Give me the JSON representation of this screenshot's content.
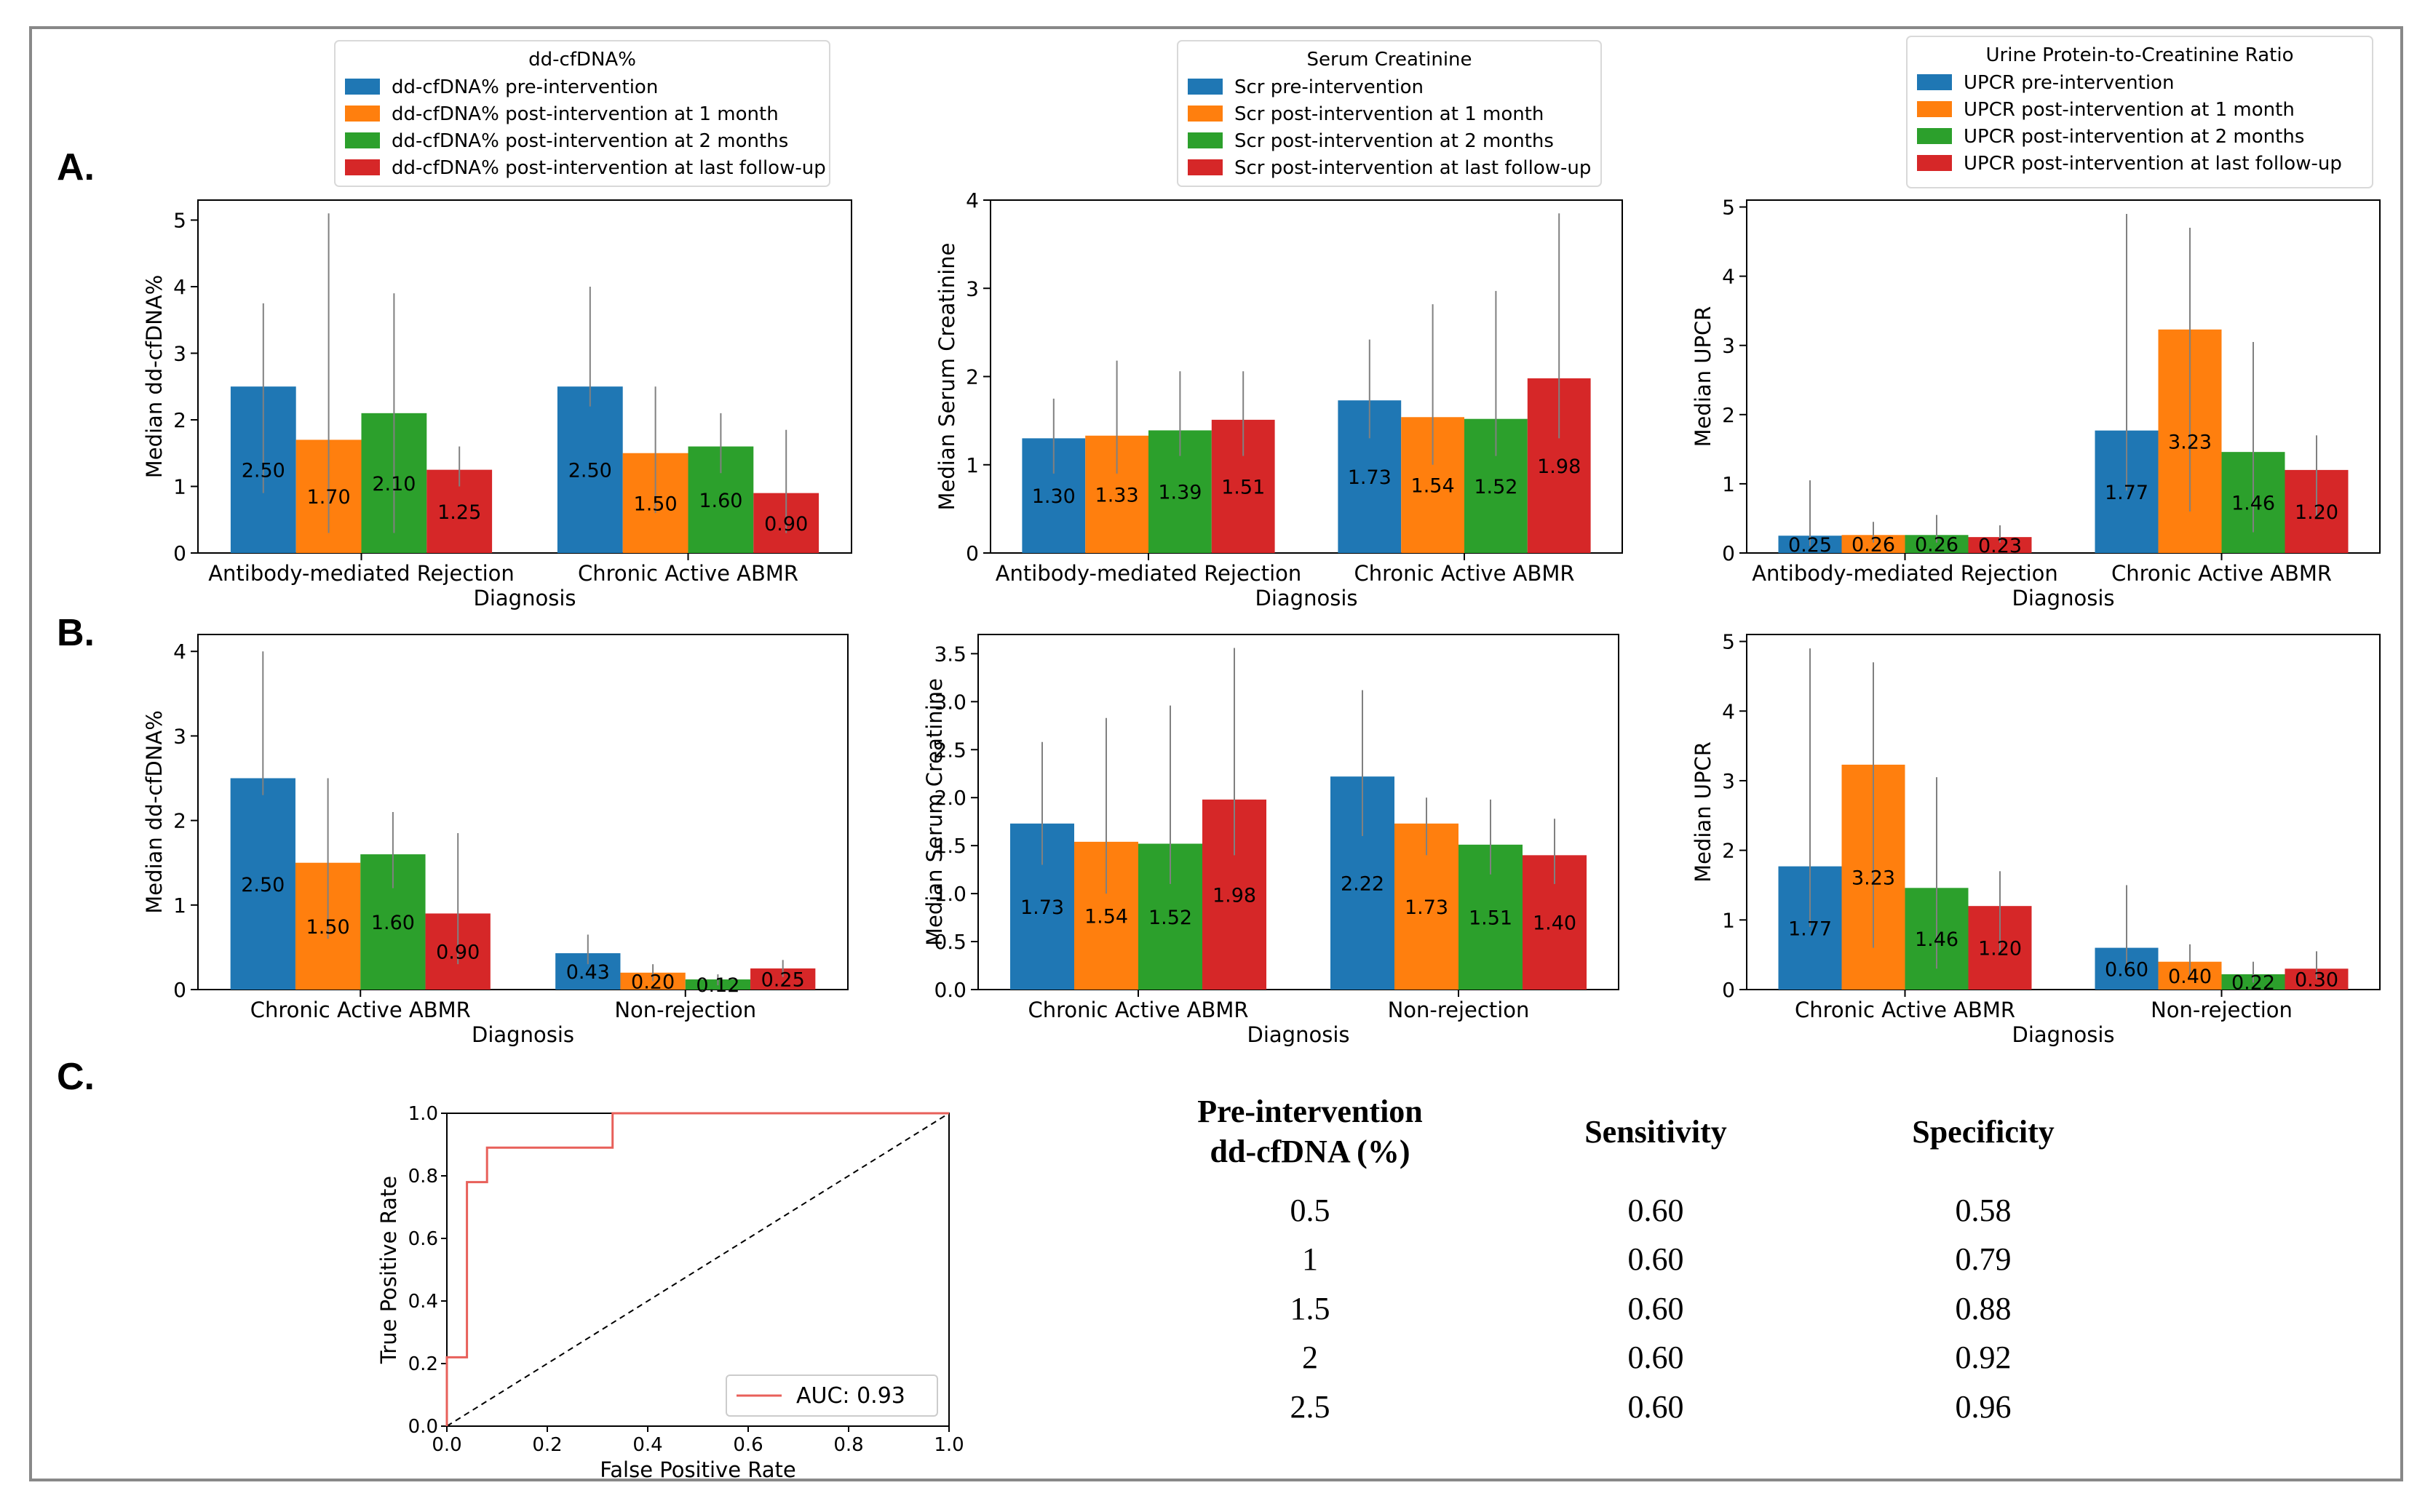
{
  "figure": {
    "panel_labels": [
      "A.",
      "B.",
      "C."
    ]
  },
  "colors": {
    "pre": "#1f77b4",
    "m1": "#ff7f0e",
    "m2": "#2ca02c",
    "last": "#d62728",
    "errorbar": "#808080",
    "roc_line": "#e8605a",
    "chance_line": "#000000"
  },
  "chart_data": [
    {
      "id": "A1",
      "type": "bar",
      "legend_title": "dd-cfDNA%",
      "legend_labels": [
        "dd-cfDNA% pre-intervention",
        "dd-cfDNA% post-intervention at 1 month",
        "dd-cfDNA% post-intervention at 2 months",
        "dd-cfDNA% post-intervention at last follow-up"
      ],
      "xlabel": "Diagnosis",
      "ylabel": "Median dd-cfDNA%",
      "categories": [
        "Antibody-mediated Rejection",
        "Chronic Active ABMR"
      ],
      "ylim": [
        0,
        5.3
      ],
      "yticks": [
        0,
        1,
        2,
        3,
        4,
        5
      ],
      "ytick_labels": [
        "0",
        "1",
        "2",
        "3",
        "4",
        "5"
      ],
      "series": [
        {
          "name": "pre",
          "values": [
            2.5,
            2.5
          ],
          "labels": [
            "2.50",
            "2.50"
          ],
          "err_low": [
            0.9,
            2.2
          ],
          "err_high": [
            3.75,
            4.0
          ]
        },
        {
          "name": "m1",
          "values": [
            1.7,
            1.5
          ],
          "labels": [
            "1.70",
            "1.50"
          ],
          "err_low": [
            0.3,
            0.6
          ],
          "err_high": [
            5.1,
            2.5
          ]
        },
        {
          "name": "m2",
          "values": [
            2.1,
            1.6
          ],
          "labels": [
            "2.10",
            "1.60"
          ],
          "err_low": [
            0.3,
            1.2
          ],
          "err_high": [
            3.9,
            2.1
          ]
        },
        {
          "name": "last",
          "values": [
            1.25,
            0.9
          ],
          "labels": [
            "1.25",
            "0.90"
          ],
          "err_low": [
            1.0,
            0.3
          ],
          "err_high": [
            1.6,
            1.85
          ]
        }
      ]
    },
    {
      "id": "A2",
      "type": "bar",
      "legend_title": "Serum Creatinine",
      "legend_labels": [
        "Scr pre-intervention",
        "Scr post-intervention at 1 month",
        "Scr post-intervention at 2 months",
        "Scr post-intervention at last follow-up"
      ],
      "xlabel": "Diagnosis",
      "ylabel": "Median Serum Creatinine",
      "categories": [
        "Antibody-mediated Rejection",
        "Chronic Active ABMR"
      ],
      "ylim": [
        0,
        4.0
      ],
      "yticks": [
        0,
        1,
        2,
        3,
        4
      ],
      "ytick_labels": [
        "0",
        "1",
        "2",
        "3",
        "4"
      ],
      "series": [
        {
          "name": "pre",
          "values": [
            1.3,
            1.73
          ],
          "labels": [
            "1.30",
            "1.73"
          ],
          "err_low": [
            0.9,
            1.3
          ],
          "err_high": [
            1.75,
            2.42
          ]
        },
        {
          "name": "m1",
          "values": [
            1.33,
            1.54
          ],
          "labels": [
            "1.33",
            "1.54"
          ],
          "err_low": [
            0.9,
            1.0
          ],
          "err_high": [
            2.18,
            2.82
          ]
        },
        {
          "name": "m2",
          "values": [
            1.39,
            1.52
          ],
          "labels": [
            "1.39",
            "1.52"
          ],
          "err_low": [
            1.1,
            1.1
          ],
          "err_high": [
            2.06,
            2.97
          ]
        },
        {
          "name": "last",
          "values": [
            1.51,
            1.98
          ],
          "labels": [
            "1.51",
            "1.98"
          ],
          "err_low": [
            1.1,
            1.3
          ],
          "err_high": [
            2.06,
            3.85
          ]
        }
      ]
    },
    {
      "id": "A3",
      "type": "bar",
      "legend_title": "Urine Protein-to-Creatinine Ratio",
      "legend_labels": [
        "UPCR pre-intervention",
        "UPCR post-intervention at 1 month",
        "UPCR post-intervention at 2 months",
        "UPCR post-intervention at last follow-up"
      ],
      "xlabel": "Diagnosis",
      "ylabel": "Median UPCR",
      "categories": [
        "Antibody-mediated Rejection",
        "Chronic Active ABMR"
      ],
      "ylim": [
        0,
        5.1
      ],
      "yticks": [
        0,
        1,
        2,
        3,
        4,
        5
      ],
      "ytick_labels": [
        "0",
        "1",
        "2",
        "3",
        "4",
        "5"
      ],
      "series": [
        {
          "name": "pre",
          "values": [
            0.25,
            1.77
          ],
          "labels": [
            "0.25",
            "1.77"
          ],
          "err_low": [
            0.1,
            0.9
          ],
          "err_high": [
            1.05,
            4.9
          ]
        },
        {
          "name": "m1",
          "values": [
            0.26,
            3.23
          ],
          "labels": [
            "0.26",
            "3.23"
          ],
          "err_low": [
            0.15,
            0.6
          ],
          "err_high": [
            0.45,
            4.7
          ]
        },
        {
          "name": "m2",
          "values": [
            0.26,
            1.46
          ],
          "labels": [
            "0.26",
            "1.46"
          ],
          "err_low": [
            0.15,
            0.3
          ],
          "err_high": [
            0.55,
            3.05
          ]
        },
        {
          "name": "last",
          "values": [
            0.23,
            1.2
          ],
          "labels": [
            "0.23",
            "1.20"
          ],
          "err_low": [
            0.15,
            0.5
          ],
          "err_high": [
            0.4,
            1.7
          ]
        }
      ]
    },
    {
      "id": "B1",
      "type": "bar",
      "xlabel": "Diagnosis",
      "ylabel": "Median dd-cfDNA%",
      "categories": [
        "Chronic Active ABMR",
        "Non-rejection"
      ],
      "ylim": [
        0,
        4.2
      ],
      "yticks": [
        0,
        1,
        2,
        3,
        4
      ],
      "ytick_labels": [
        "0",
        "1",
        "2",
        "3",
        "4"
      ],
      "series": [
        {
          "name": "pre",
          "values": [
            2.5,
            0.43
          ],
          "labels": [
            "2.50",
            "0.43"
          ],
          "err_low": [
            2.3,
            0.3
          ],
          "err_high": [
            4.0,
            0.65
          ]
        },
        {
          "name": "m1",
          "values": [
            1.5,
            0.2
          ],
          "labels": [
            "1.50",
            "0.20"
          ],
          "err_low": [
            0.6,
            0.1
          ],
          "err_high": [
            2.5,
            0.3
          ]
        },
        {
          "name": "m2",
          "values": [
            1.6,
            0.12
          ],
          "labels": [
            "1.60",
            "0.12"
          ],
          "err_low": [
            1.2,
            0.05
          ],
          "err_high": [
            2.1,
            0.18
          ]
        },
        {
          "name": "last",
          "values": [
            0.9,
            0.25
          ],
          "labels": [
            "0.90",
            "0.25"
          ],
          "err_low": [
            0.3,
            0.15
          ],
          "err_high": [
            1.85,
            0.35
          ]
        }
      ]
    },
    {
      "id": "B2",
      "type": "bar",
      "xlabel": "Diagnosis",
      "ylabel": "Median Serum Creatinine",
      "categories": [
        "Chronic Active ABMR",
        "Non-rejection"
      ],
      "ylim": [
        0,
        3.7
      ],
      "yticks": [
        0,
        0.5,
        1,
        1.5,
        2,
        2.5,
        3,
        3.5
      ],
      "ytick_labels": [
        "0.0",
        "0.5",
        "1.0",
        "1.5",
        "2.0",
        "2.5",
        "3.0",
        "3.5"
      ],
      "series": [
        {
          "name": "pre",
          "values": [
            1.73,
            2.22
          ],
          "labels": [
            "1.73",
            "2.22"
          ],
          "err_low": [
            1.3,
            1.6
          ],
          "err_high": [
            2.58,
            3.12
          ]
        },
        {
          "name": "m1",
          "values": [
            1.54,
            1.73
          ],
          "labels": [
            "1.54",
            "1.73"
          ],
          "err_low": [
            1.0,
            1.4
          ],
          "err_high": [
            2.83,
            2.0
          ]
        },
        {
          "name": "m2",
          "values": [
            1.52,
            1.51
          ],
          "labels": [
            "1.52",
            "1.51"
          ],
          "err_low": [
            1.1,
            1.2
          ],
          "err_high": [
            2.96,
            1.98
          ]
        },
        {
          "name": "last",
          "values": [
            1.98,
            1.4
          ],
          "labels": [
            "1.98",
            "1.40"
          ],
          "err_low": [
            1.4,
            1.1
          ],
          "err_high": [
            3.56,
            1.78
          ]
        }
      ]
    },
    {
      "id": "B3",
      "type": "bar",
      "xlabel": "Diagnosis",
      "ylabel": "Median UPCR",
      "categories": [
        "Chronic Active ABMR",
        "Non-rejection"
      ],
      "ylim": [
        0,
        5.1
      ],
      "yticks": [
        0,
        1,
        2,
        3,
        4,
        5
      ],
      "ytick_labels": [
        "0",
        "1",
        "2",
        "3",
        "4",
        "5"
      ],
      "series": [
        {
          "name": "pre",
          "values": [
            1.77,
            0.6
          ],
          "labels": [
            "1.77",
            "0.60"
          ],
          "err_low": [
            0.9,
            0.3
          ],
          "err_high": [
            4.9,
            1.5
          ]
        },
        {
          "name": "m1",
          "values": [
            3.23,
            0.4
          ],
          "labels": [
            "3.23",
            "0.40"
          ],
          "err_low": [
            0.6,
            0.2
          ],
          "err_high": [
            4.7,
            0.65
          ]
        },
        {
          "name": "m2",
          "values": [
            1.46,
            0.22
          ],
          "labels": [
            "1.46",
            "0.22"
          ],
          "err_low": [
            0.3,
            0.1
          ],
          "err_high": [
            3.05,
            0.4
          ]
        },
        {
          "name": "last",
          "values": [
            1.2,
            0.3
          ],
          "labels": [
            "1.20",
            "0.30"
          ],
          "err_low": [
            0.5,
            0.15
          ],
          "err_high": [
            1.7,
            0.55
          ]
        }
      ]
    },
    {
      "id": "C",
      "type": "line",
      "xlabel": "False Positive Rate",
      "ylabel": "True Positive Rate",
      "xlim": [
        0,
        1
      ],
      "ylim": [
        0,
        1
      ],
      "ticks": [
        0,
        0.2,
        0.4,
        0.6,
        0.8,
        1.0
      ],
      "tick_labels": [
        "0.0",
        "0.2",
        "0.4",
        "0.6",
        "0.8",
        "1.0"
      ],
      "legend_label": "AUC: 0.93",
      "roc_x": [
        0,
        0,
        0.04,
        0.04,
        0.08,
        0.08,
        0.33,
        0.33,
        1.0
      ],
      "roc_y": [
        0,
        0.22,
        0.22,
        0.78,
        0.78,
        0.89,
        0.89,
        1.0,
        1.0
      ],
      "chance_x": [
        0,
        1
      ],
      "chance_y": [
        0,
        1
      ]
    }
  ],
  "table": {
    "headers": [
      [
        "Pre-intervention",
        "dd-cfDNA (%)"
      ],
      [
        "Sensitivity"
      ],
      [
        "Specificity"
      ]
    ],
    "rows": [
      [
        "0.5",
        "0.60",
        "0.58"
      ],
      [
        "1",
        "0.60",
        "0.79"
      ],
      [
        "1.5",
        "0.60",
        "0.88"
      ],
      [
        "2",
        "0.60",
        "0.92"
      ],
      [
        "2.5",
        "0.60",
        "0.96"
      ]
    ]
  }
}
